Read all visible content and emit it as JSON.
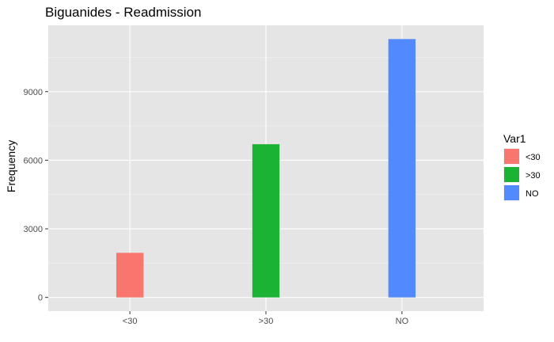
{
  "chart_data": {
    "type": "bar",
    "title": "Biguanides - Readmission",
    "xlabel": "",
    "ylabel": "Frequency",
    "categories": [
      "<30",
      ">30",
      "NO"
    ],
    "values": [
      1950,
      6700,
      11300
    ],
    "colors": [
      "#F8766D",
      "#1BB333",
      "#5289FF"
    ],
    "ylim": [
      -600,
      11900
    ],
    "yticks": [
      0,
      3000,
      6000,
      9000
    ],
    "ytick_labels": [
      "0",
      "3000",
      "6000",
      "9000"
    ],
    "grid": true,
    "panel_background": "#E5E5E5",
    "legend": {
      "title": "Var1",
      "position": "right",
      "entries": [
        "<30",
        ">30",
        "NO"
      ]
    }
  }
}
